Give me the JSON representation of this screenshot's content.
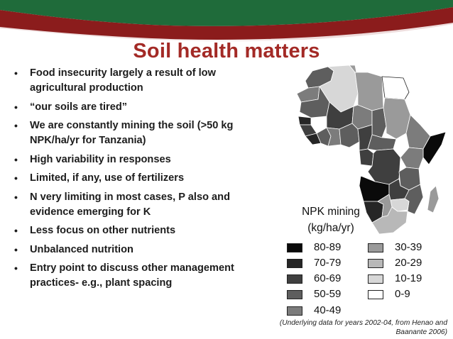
{
  "slide": {
    "title": "Soil health matters",
    "bullets": [
      "Food insecurity largely a result of low agricultural production",
      "“our soils are tired”",
      "We are constantly mining the soil (>50 kg NPK/ha/yr for Tanzania)",
      "High variability in responses",
      "Limited, if any, use of fertilizers",
      "N very limiting in most cases, P also and evidence emerging for K",
      "Less focus on other nutrients",
      "Unbalanced nutrition",
      "Entry point to discuss other management practices- e.g., plant spacing"
    ],
    "bullet_glyph": "•"
  },
  "colors": {
    "banner_green": "#1f6b3a",
    "banner_red": "#8b1c1c",
    "title": "#a32a26"
  },
  "legend": {
    "title_line1": "NPK mining",
    "title_line2": "(kg/ha/yr)",
    "items": [
      {
        "label": "80-89",
        "color": "#0a0a0a"
      },
      {
        "label": "70-79",
        "color": "#262626"
      },
      {
        "label": "60-69",
        "color": "#3f3f3f"
      },
      {
        "label": "50-59",
        "color": "#5e5e5e"
      },
      {
        "label": "40-49",
        "color": "#7c7c7c"
      },
      {
        "label": "30-39",
        "color": "#9a9a9a"
      },
      {
        "label": "20-29",
        "color": "#b8b8b8"
      },
      {
        "label": "10-19",
        "color": "#d7d7d7"
      },
      {
        "label": "0-9",
        "color": "#ffffff"
      }
    ]
  },
  "footnote": {
    "line1": "(Underlying data for years 2002-04, from Henao and",
    "line2": "Baanante 2006)"
  }
}
